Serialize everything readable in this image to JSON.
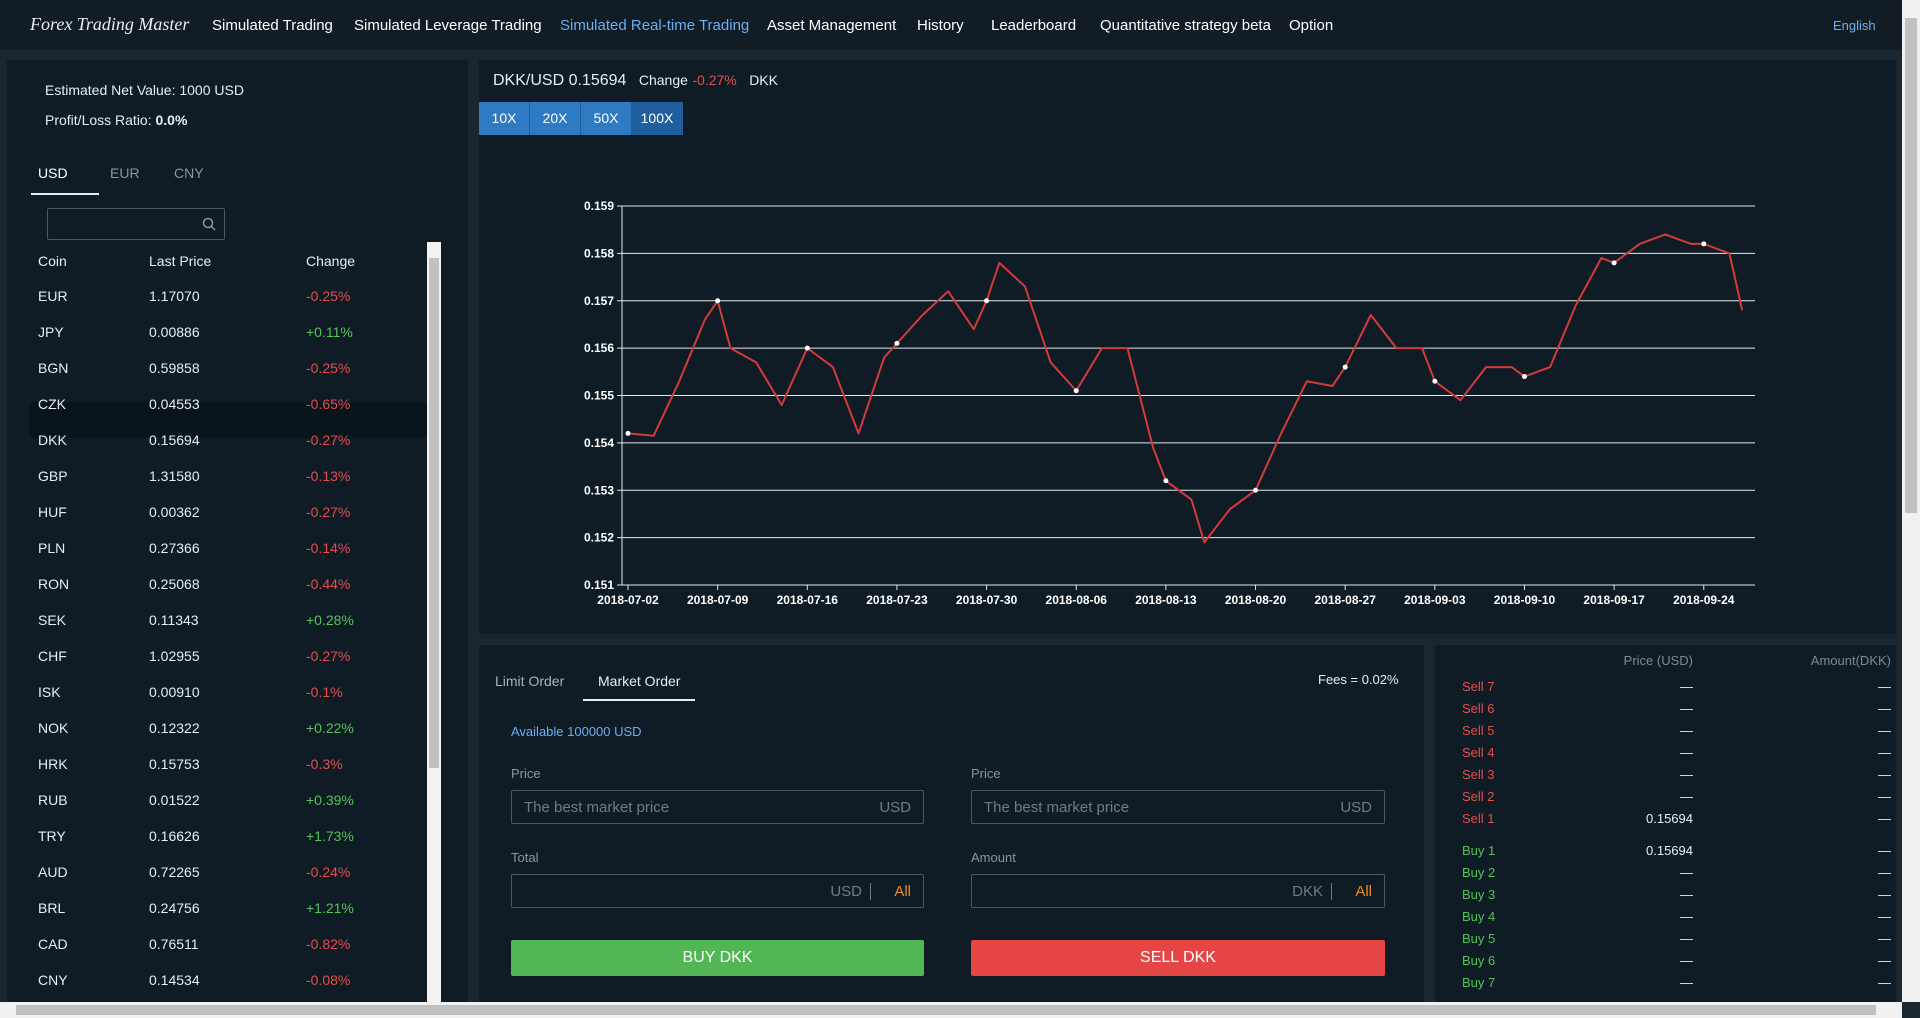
{
  "nav": {
    "brand": "Forex Trading Master",
    "items": [
      "Simulated Trading",
      "Simulated Leverage Trading",
      "Simulated Real-time Trading",
      "Asset Management",
      "History",
      "Leaderboard",
      "Quantitative strategy beta",
      "Option"
    ],
    "language": "English"
  },
  "account": {
    "net_value": "Estimated Net Value: 1000 USD",
    "ratio_label": "Profit/Loss Ratio:",
    "ratio_value": "0.0%"
  },
  "currency_tabs": [
    "USD",
    "EUR",
    "CNY"
  ],
  "market_table": {
    "columns": [
      "Coin",
      "Last Price",
      "Change"
    ],
    "rows": [
      [
        "EUR",
        "1.17070",
        "-0.25%"
      ],
      [
        "JPY",
        "0.00886",
        "+0.11%"
      ],
      [
        "BGN",
        "0.59858",
        "-0.25%"
      ],
      [
        "CZK",
        "0.04553",
        "-0.65%"
      ],
      [
        "DKK",
        "0.15694",
        "-0.27%"
      ],
      [
        "GBP",
        "1.31580",
        "-0.13%"
      ],
      [
        "HUF",
        "0.00362",
        "-0.27%"
      ],
      [
        "PLN",
        "0.27366",
        "-0.14%"
      ],
      [
        "RON",
        "0.25068",
        "-0.44%"
      ],
      [
        "SEK",
        "0.11343",
        "+0.28%"
      ],
      [
        "CHF",
        "1.02955",
        "-0.27%"
      ],
      [
        "ISK",
        "0.00910",
        "-0.1%"
      ],
      [
        "NOK",
        "0.12322",
        "+0.22%"
      ],
      [
        "HRK",
        "0.15753",
        "-0.3%"
      ],
      [
        "RUB",
        "0.01522",
        "+0.39%"
      ],
      [
        "TRY",
        "0.16626",
        "+1.73%"
      ],
      [
        "AUD",
        "0.72265",
        "-0.24%"
      ],
      [
        "BRL",
        "0.24756",
        "+1.21%"
      ],
      [
        "CAD",
        "0.76511",
        "-0.82%"
      ],
      [
        "CNY",
        "0.14534",
        "-0.08%"
      ]
    ]
  },
  "pair": {
    "symbol": "DKK/USD",
    "price": "0.15694",
    "change_label": "Change",
    "change": "-0.27%",
    "coin": "DKK"
  },
  "leverage": [
    "10X",
    "20X",
    "50X",
    "100X"
  ],
  "chart_data": {
    "type": "line",
    "color": "#d23b3b",
    "grid": true,
    "x": [
      "2018-07-02",
      "2018-07-04",
      "2018-07-06",
      "2018-07-08",
      "2018-07-09",
      "2018-07-10",
      "2018-07-12",
      "2018-07-14",
      "2018-07-16",
      "2018-07-18",
      "2018-07-20",
      "2018-07-22",
      "2018-07-23",
      "2018-07-25",
      "2018-07-27",
      "2018-07-29",
      "2018-07-30",
      "2018-07-31",
      "2018-08-02",
      "2018-08-04",
      "2018-08-06",
      "2018-08-08",
      "2018-08-10",
      "2018-08-12",
      "2018-08-13",
      "2018-08-15",
      "2018-08-16",
      "2018-08-18",
      "2018-08-20",
      "2018-08-22",
      "2018-08-24",
      "2018-08-26",
      "2018-08-27",
      "2018-08-29",
      "2018-08-31",
      "2018-09-02",
      "2018-09-03",
      "2018-09-05",
      "2018-09-07",
      "2018-09-09",
      "2018-09-10",
      "2018-09-12",
      "2018-09-14",
      "2018-09-16",
      "2018-09-17",
      "2018-09-19",
      "2018-09-21",
      "2018-09-23",
      "2018-09-24",
      "2018-09-26",
      "2018-09-27"
    ],
    "values": [
      0.1542,
      0.15415,
      0.1553,
      0.1566,
      0.157,
      0.156,
      0.1557,
      0.1548,
      0.156,
      0.1556,
      0.1542,
      0.1558,
      0.1561,
      0.1567,
      0.1572,
      0.1564,
      0.157,
      0.1578,
      0.1573,
      0.1557,
      0.1551,
      0.156,
      0.156,
      0.1539,
      0.1532,
      0.1528,
      0.1519,
      0.1526,
      0.153,
      0.1542,
      0.1553,
      0.1552,
      0.1556,
      0.1567,
      0.156,
      0.156,
      0.1553,
      0.1549,
      0.1556,
      0.1556,
      0.1554,
      0.1556,
      0.1569,
      0.1579,
      0.1578,
      0.1582,
      0.1584,
      0.1582,
      0.1582,
      0.158,
      0.1568
    ],
    "xlim": [
      "2018-07-02",
      "2018-09-28"
    ],
    "xticks": [
      "2018-07-02",
      "2018-07-09",
      "2018-07-16",
      "2018-07-23",
      "2018-07-30",
      "2018-08-06",
      "2018-08-13",
      "2018-08-20",
      "2018-08-27",
      "2018-09-03",
      "2018-09-10",
      "2018-09-17",
      "2018-09-24"
    ],
    "ylim": [
      0.151,
      0.159
    ],
    "yticks": [
      0.151,
      0.152,
      0.153,
      0.154,
      0.155,
      0.156,
      0.157,
      0.158,
      0.159
    ]
  },
  "order": {
    "tabs": [
      "Limit Order",
      "Market Order"
    ],
    "fees": "Fees = 0.02%",
    "available": "Available 100000 USD",
    "buy": {
      "price_label": "Price",
      "price_placeholder": "The best market price",
      "price_unit": "USD",
      "total_label": "Total",
      "total_unit": "USD",
      "all": "All",
      "button": "BUY DKK"
    },
    "sell": {
      "price_label": "Price",
      "price_placeholder": "The best market price",
      "price_unit": "USD",
      "amount_label": "Amount",
      "amount_unit": "DKK",
      "all": "All",
      "button": "SELL DKK"
    }
  },
  "order_book": {
    "columns": [
      "Price (USD)",
      "Amount(DKK)"
    ],
    "sells": [
      {
        "label": "Sell 7",
        "price": "—",
        "amount": "—"
      },
      {
        "label": "Sell 6",
        "price": "—",
        "amount": "—"
      },
      {
        "label": "Sell 5",
        "price": "—",
        "amount": "—"
      },
      {
        "label": "Sell 4",
        "price": "—",
        "amount": "—"
      },
      {
        "label": "Sell 3",
        "price": "—",
        "amount": "—"
      },
      {
        "label": "Sell 2",
        "price": "—",
        "amount": "—"
      },
      {
        "label": "Sell 1",
        "price": "0.15694",
        "amount": "—"
      }
    ],
    "buys": [
      {
        "label": "Buy 1",
        "price": "0.15694",
        "amount": "—"
      },
      {
        "label": "Buy 2",
        "price": "—",
        "amount": "—"
      },
      {
        "label": "Buy 3",
        "price": "—",
        "amount": "—"
      },
      {
        "label": "Buy 4",
        "price": "—",
        "amount": "—"
      },
      {
        "label": "Buy 5",
        "price": "—",
        "amount": "—"
      },
      {
        "label": "Buy 6",
        "price": "—",
        "amount": "—"
      },
      {
        "label": "Buy 7",
        "price": "—",
        "amount": "—"
      }
    ]
  }
}
